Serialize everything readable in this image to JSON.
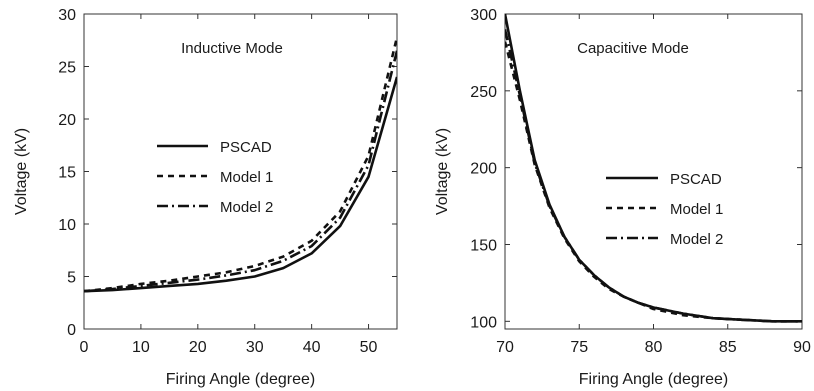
{
  "chart_data": [
    {
      "type": "line",
      "title": "Inductive Mode",
      "xlabel": "Firing Angle (degree)",
      "ylabel": "Voltage (kV)",
      "xlim": [
        0,
        55
      ],
      "ylim": [
        0,
        30
      ],
      "xticks": [
        "0",
        "10",
        "20",
        "30",
        "40",
        "50"
      ],
      "yticks": [
        "0",
        "5",
        "10",
        "15",
        "20",
        "25",
        "30"
      ],
      "grid": false,
      "legend_position": "center-left",
      "series": [
        {
          "name": "PSCAD",
          "style": "solid",
          "x": [
            0,
            5,
            10,
            15,
            20,
            25,
            30,
            35,
            40,
            45,
            50,
            55
          ],
          "y": [
            3.6,
            3.7,
            3.9,
            4.1,
            4.3,
            4.6,
            5.0,
            5.8,
            7.2,
            9.8,
            14.5,
            24.0
          ]
        },
        {
          "name": "Model 1",
          "style": "dashed",
          "x": [
            0,
            5,
            10,
            15,
            20,
            25,
            30,
            35,
            40,
            45,
            50,
            55
          ],
          "y": [
            3.6,
            3.9,
            4.3,
            4.6,
            5.0,
            5.4,
            6.0,
            6.9,
            8.4,
            11.2,
            16.5,
            27.8
          ]
        },
        {
          "name": "Model 2",
          "style": "dash-dot",
          "x": [
            0,
            5,
            10,
            15,
            20,
            25,
            30,
            35,
            40,
            45,
            50,
            55
          ],
          "y": [
            3.6,
            3.8,
            4.1,
            4.4,
            4.7,
            5.1,
            5.6,
            6.5,
            7.9,
            10.6,
            15.6,
            26.5
          ]
        }
      ]
    },
    {
      "type": "line",
      "title": "Capacitive Mode",
      "xlabel": "Firing Angle (degree)",
      "ylabel": "Voltage (kV)",
      "xlim": [
        70,
        90
      ],
      "ylim": [
        95,
        300
      ],
      "xticks": [
        "70",
        "75",
        "80",
        "85",
        "90"
      ],
      "yticks": [
        "100",
        "150",
        "200",
        "250",
        "300"
      ],
      "grid": false,
      "legend_position": "center-right",
      "series": [
        {
          "name": "PSCAD",
          "style": "solid",
          "x": [
            70,
            71,
            72,
            73,
            74,
            75,
            76,
            77,
            78,
            79,
            80,
            82,
            84,
            86,
            88,
            90
          ],
          "y": [
            300,
            250,
            205,
            176,
            155,
            140,
            130,
            122,
            116,
            112,
            109,
            105,
            102,
            101,
            100,
            100
          ]
        },
        {
          "name": "Model 1",
          "style": "dashed",
          "x": [
            70,
            71,
            72,
            73,
            74,
            75,
            76,
            77,
            78,
            79,
            80,
            82,
            84,
            86,
            88,
            90
          ],
          "y": [
            282,
            244,
            202,
            174,
            154,
            139,
            129,
            121,
            116,
            112,
            108,
            104,
            102,
            101,
            100,
            100
          ]
        },
        {
          "name": "Model 2",
          "style": "dash-dot",
          "x": [
            70,
            71,
            72,
            73,
            74,
            75,
            76,
            77,
            78,
            79,
            80,
            82,
            84,
            86,
            88,
            90
          ],
          "y": [
            290,
            247,
            203,
            175,
            155,
            140,
            130,
            122,
            116,
            112,
            109,
            105,
            102,
            101,
            100,
            100
          ]
        }
      ]
    }
  ]
}
